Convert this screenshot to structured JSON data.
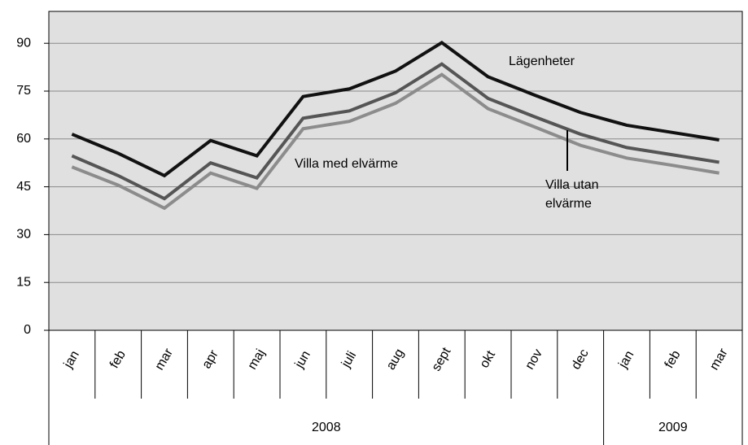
{
  "chart_data": {
    "type": "line",
    "categories": [
      "jan",
      "feb",
      "mar",
      "apr",
      "maj",
      "jun",
      "juli",
      "aug",
      "sept",
      "okt",
      "nov",
      "dec",
      "jan",
      "feb",
      "mar"
    ],
    "years": [
      "2008",
      "2008",
      "2008",
      "2008",
      "2008",
      "2008",
      "2008",
      "2008",
      "2008",
      "2008",
      "2008",
      "2008",
      "2009",
      "2009",
      "2009"
    ],
    "series": [
      {
        "name": "Lägenheter",
        "color": "#111111",
        "values": [
          61.5,
          55.5,
          48.5,
          59.5,
          54.7,
          73.3,
          75.7,
          81.3,
          90.2,
          79.5,
          73.8,
          68.3,
          64.3,
          62,
          59.7
        ]
      },
      {
        "name": "Villa med elvärme",
        "color": "#555555",
        "values": [
          54.7,
          48.5,
          41.3,
          52.5,
          47.8,
          66.5,
          68.8,
          74.5,
          83.5,
          72.7,
          67,
          61.5,
          57.3,
          55,
          52.7
        ]
      },
      {
        "name": "Villa utan elvärme",
        "color": "#8c8c8c",
        "values": [
          51.2,
          45.5,
          38.3,
          49.3,
          44.5,
          63.2,
          65.5,
          71.2,
          80.2,
          69.5,
          63.8,
          58,
          54,
          51.7,
          49.3
        ]
      }
    ],
    "ylim": [
      0,
      100
    ],
    "yticks": [
      0,
      15,
      30,
      45,
      60,
      75,
      90
    ],
    "grid": true
  }
}
